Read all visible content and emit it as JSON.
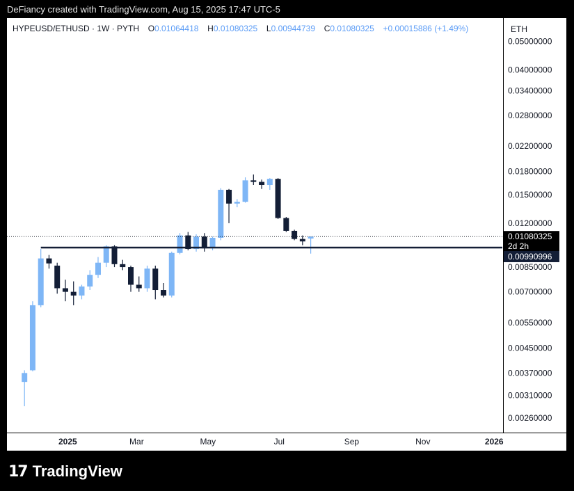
{
  "header": {
    "text": "DeFiancy created with TradingView.com, Aug 15, 2025 17:47 UTC-5"
  },
  "legend": {
    "symbol": "HYPEUSD/ETHUSD · 1W · PYTH",
    "o_label": "O",
    "o_value": "0.01064418",
    "h_label": "H",
    "h_value": "0.01080325",
    "l_label": "L",
    "l_value": "0.00944739",
    "c_label": "C",
    "c_value": "0.01080325",
    "change": "+0.00015886 (+1.49%)"
  },
  "axis": {
    "unit": "ETH"
  },
  "price_tag": {
    "value": "0.01080325",
    "countdown": "2d 2h"
  },
  "level_tag": {
    "value": "0.00990996"
  },
  "brand": {
    "logo": "17",
    "name": "TradingView"
  },
  "colors": {
    "up": "#7eb6f6",
    "down": "#131e36",
    "level": "#131e36",
    "price_line": "#131722"
  },
  "chart_data": {
    "type": "candlestick",
    "title": "HYPEUSD/ETHUSD · 1W · PYTH",
    "y_scale": "log",
    "ylim": [
      0.00233,
      0.0601
    ],
    "y_ticks": [
      "0.05000000",
      "0.04000000",
      "0.03400000",
      "0.02800000",
      "0.02200000",
      "0.01800000",
      "0.01500000",
      "0.01200000",
      "0.00850000",
      "0.00700000",
      "0.00550000",
      "0.00450000",
      "0.00370000",
      "0.00310000",
      "0.00260000"
    ],
    "x_ticks": [
      "2025",
      "Mar",
      "May",
      "Jul",
      "Sep",
      "Nov",
      "2026"
    ],
    "x_tick_dates": [
      "2025-01-01",
      "2025-03-01",
      "2025-05-01",
      "2025-07-01",
      "2025-09-01",
      "2025-11-01",
      "2026-01-01"
    ],
    "xlim": [
      "2024-11-10",
      "2026-01-08"
    ],
    "horizontal_line": 0.00990996,
    "current_price": 0.01080325,
    "candles": [
      {
        "t": "2024-11-25",
        "o": 0.00345,
        "h": 0.00378,
        "l": 0.00285,
        "c": 0.0037
      },
      {
        "t": "2024-12-02",
        "o": 0.00378,
        "h": 0.0065,
        "l": 0.00375,
        "c": 0.0063
      },
      {
        "t": "2024-12-09",
        "o": 0.0063,
        "h": 0.0098,
        "l": 0.0062,
        "c": 0.0091
      },
      {
        "t": "2024-12-16",
        "o": 0.0091,
        "h": 0.00935,
        "l": 0.0084,
        "c": 0.00875
      },
      {
        "t": "2024-12-23",
        "o": 0.0086,
        "h": 0.0088,
        "l": 0.0069,
        "c": 0.0072
      },
      {
        "t": "2024-12-30",
        "o": 0.0072,
        "h": 0.0077,
        "l": 0.0065,
        "c": 0.007
      },
      {
        "t": "2025-01-06",
        "o": 0.007,
        "h": 0.0076,
        "l": 0.0063,
        "c": 0.0068
      },
      {
        "t": "2025-01-13",
        "o": 0.0068,
        "h": 0.0074,
        "l": 0.0066,
        "c": 0.0073
      },
      {
        "t": "2025-01-20",
        "o": 0.0073,
        "h": 0.0083,
        "l": 0.0071,
        "c": 0.008
      },
      {
        "t": "2025-01-27",
        "o": 0.008,
        "h": 0.0092,
        "l": 0.0078,
        "c": 0.0088
      },
      {
        "t": "2025-02-03",
        "o": 0.0088,
        "h": 0.0101,
        "l": 0.0085,
        "c": 0.01
      },
      {
        "t": "2025-02-10",
        "o": 0.01,
        "h": 0.0101,
        "l": 0.0085,
        "c": 0.0087
      },
      {
        "t": "2025-02-17",
        "o": 0.0087,
        "h": 0.009,
        "l": 0.0083,
        "c": 0.0085
      },
      {
        "t": "2025-02-24",
        "o": 0.0085,
        "h": 0.0086,
        "l": 0.007,
        "c": 0.0074
      },
      {
        "t": "2025-03-03",
        "o": 0.0074,
        "h": 0.0079,
        "l": 0.007,
        "c": 0.0072
      },
      {
        "t": "2025-03-10",
        "o": 0.0072,
        "h": 0.0086,
        "l": 0.007,
        "c": 0.0084
      },
      {
        "t": "2025-03-17",
        "o": 0.0084,
        "h": 0.0086,
        "l": 0.0066,
        "c": 0.0071
      },
      {
        "t": "2025-03-24",
        "o": 0.0071,
        "h": 0.0075,
        "l": 0.0067,
        "c": 0.0068
      },
      {
        "t": "2025-03-31",
        "o": 0.0068,
        "h": 0.0096,
        "l": 0.0067,
        "c": 0.0095
      },
      {
        "t": "2025-04-07",
        "o": 0.0095,
        "h": 0.0111,
        "l": 0.0094,
        "c": 0.0109
      },
      {
        "t": "2025-04-14",
        "o": 0.0109,
        "h": 0.0112,
        "l": 0.0097,
        "c": 0.0098
      },
      {
        "t": "2025-04-21",
        "o": 0.0098,
        "h": 0.011,
        "l": 0.0096,
        "c": 0.0108
      },
      {
        "t": "2025-04-28",
        "o": 0.0108,
        "h": 0.0111,
        "l": 0.0096,
        "c": 0.00985
      },
      {
        "t": "2025-05-05",
        "o": 0.00985,
        "h": 0.0108,
        "l": 0.0097,
        "c": 0.0107
      },
      {
        "t": "2025-05-12",
        "o": 0.0107,
        "h": 0.0158,
        "l": 0.0105,
        "c": 0.0156
      },
      {
        "t": "2025-05-19",
        "o": 0.0156,
        "h": 0.0157,
        "l": 0.012,
        "c": 0.014
      },
      {
        "t": "2025-05-26",
        "o": 0.014,
        "h": 0.0145,
        "l": 0.0136,
        "c": 0.0142
      },
      {
        "t": "2025-06-02",
        "o": 0.0142,
        "h": 0.0172,
        "l": 0.0141,
        "c": 0.0168
      },
      {
        "t": "2025-06-09",
        "o": 0.0168,
        "h": 0.0176,
        "l": 0.0162,
        "c": 0.0166
      },
      {
        "t": "2025-06-16",
        "o": 0.0166,
        "h": 0.0169,
        "l": 0.0157,
        "c": 0.0162
      },
      {
        "t": "2025-06-23",
        "o": 0.0162,
        "h": 0.0171,
        "l": 0.0156,
        "c": 0.017
      },
      {
        "t": "2025-06-30",
        "o": 0.017,
        "h": 0.0171,
        "l": 0.0124,
        "c": 0.0125
      },
      {
        "t": "2025-07-07",
        "o": 0.0125,
        "h": 0.0126,
        "l": 0.0112,
        "c": 0.0113
      },
      {
        "t": "2025-07-14",
        "o": 0.0113,
        "h": 0.0114,
        "l": 0.0105,
        "c": 0.0106
      },
      {
        "t": "2025-07-21",
        "o": 0.0106,
        "h": 0.0109,
        "l": 0.0101,
        "c": 0.0104
      },
      {
        "t": "2025-07-28",
        "o": 0.01064,
        "h": 0.0108,
        "l": 0.00945,
        "c": 0.0108
      }
    ]
  }
}
